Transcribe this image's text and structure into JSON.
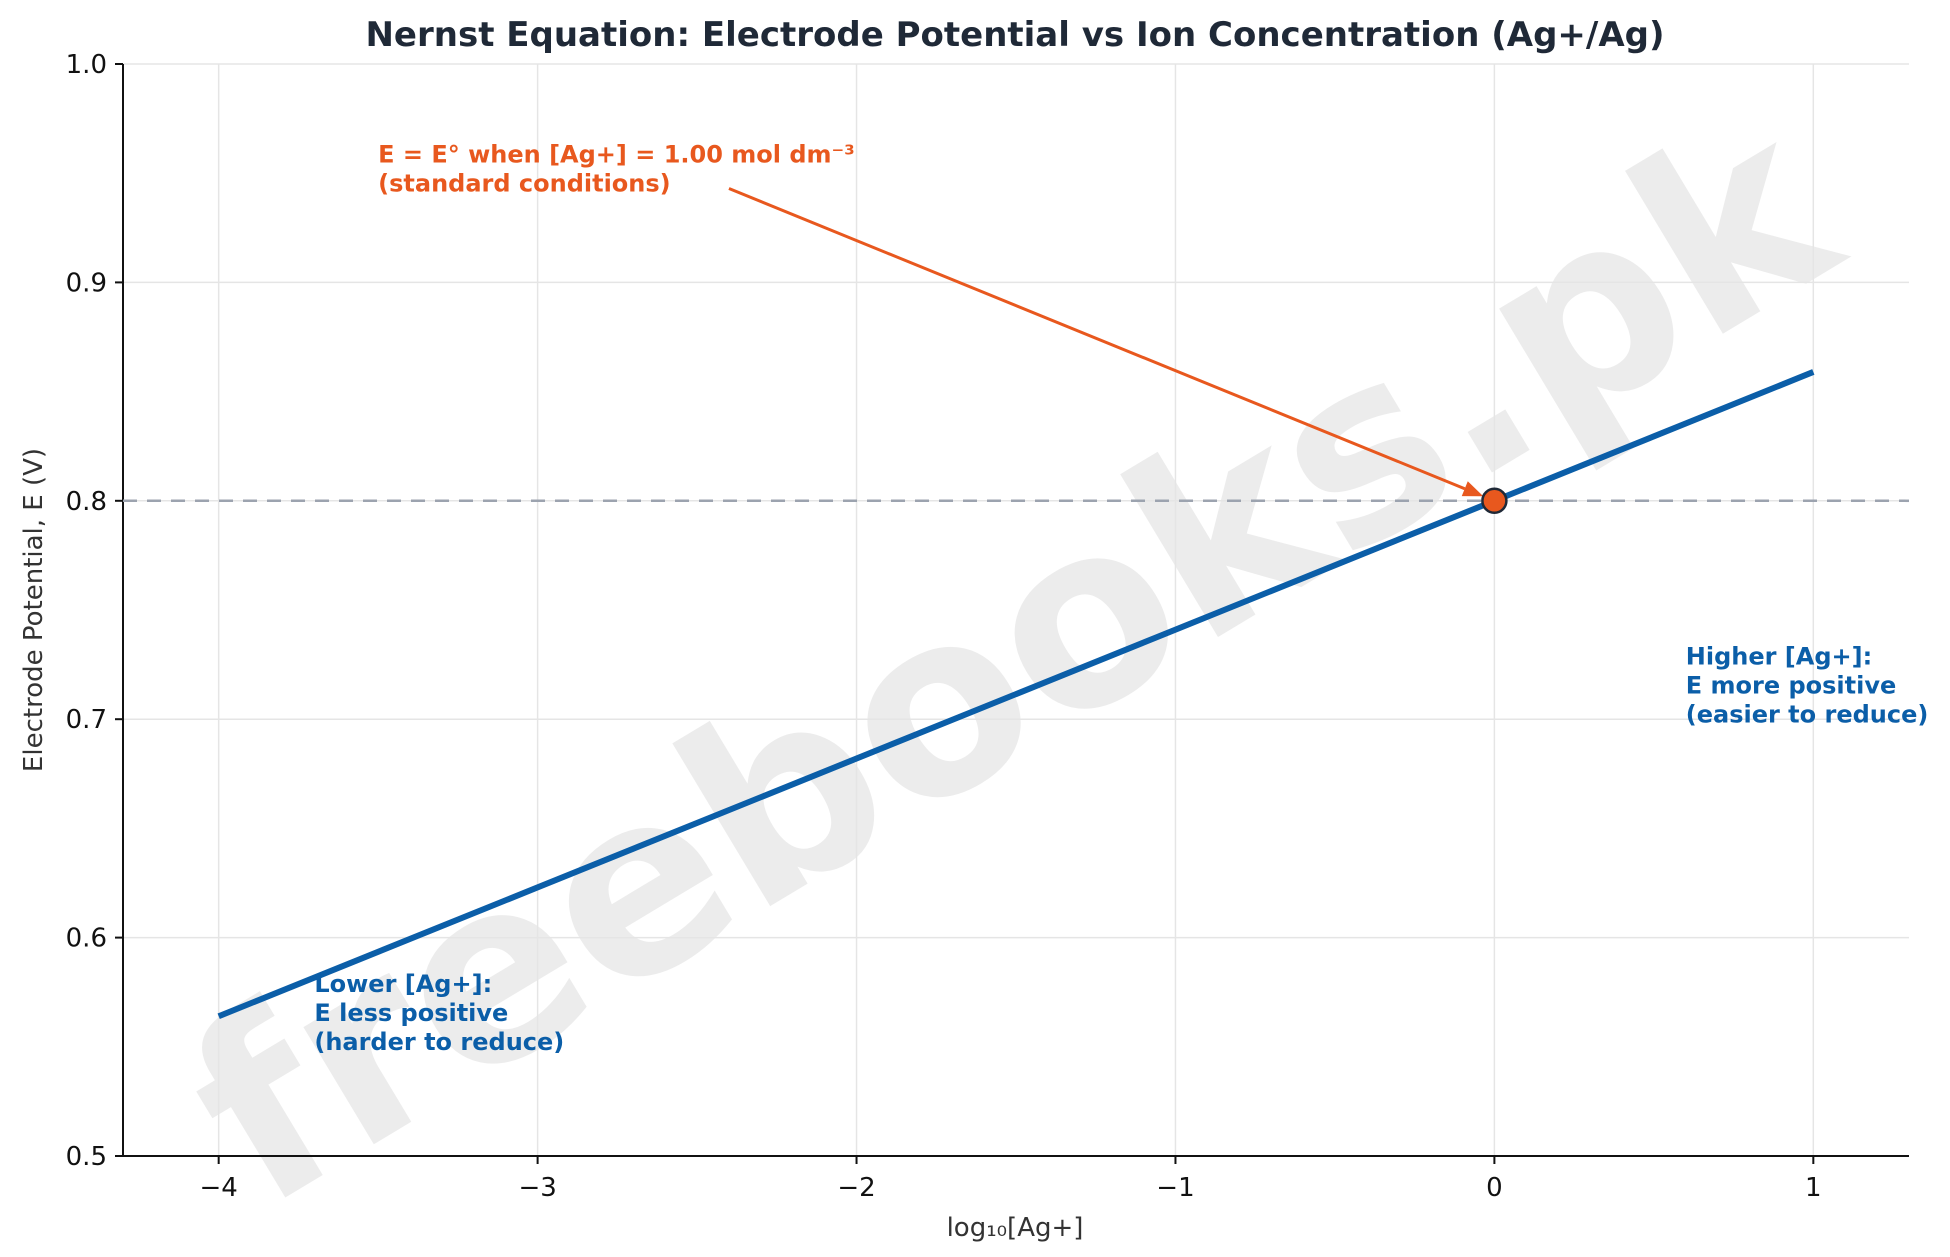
{
  "chart_data": {
    "type": "line",
    "title": "Nernst Equation: Electrode Potential vs Ion Concentration (Ag+/Ag)",
    "xlabel": "log₁₀[Ag+]",
    "ylabel": "Electrode Potential, E (V)",
    "xlim": [
      -4.3,
      1.3
    ],
    "ylim": [
      0.5,
      1.0
    ],
    "x_ticks": [
      {
        "value": -4,
        "label": "−4"
      },
      {
        "value": -3,
        "label": "−3"
      },
      {
        "value": -2,
        "label": "−2"
      },
      {
        "value": -1,
        "label": "−1"
      },
      {
        "value": 0,
        "label": "0"
      },
      {
        "value": 1,
        "label": "1"
      }
    ],
    "y_ticks": [
      {
        "value": 0.5,
        "label": "0.5"
      },
      {
        "value": 0.6,
        "label": "0.6"
      },
      {
        "value": 0.7,
        "label": "0.7"
      },
      {
        "value": 0.8,
        "label": "0.8"
      },
      {
        "value": 0.9,
        "label": "0.9"
      },
      {
        "value": 1.0,
        "label": "1.0"
      }
    ],
    "grid": true,
    "series": [
      {
        "x": [
          -4,
          1
        ],
        "y": [
          0.564,
          0.859
        ],
        "color": "#0b5ea8"
      }
    ],
    "reference_line": {
      "y": 0.8,
      "style": "dashed",
      "color": "#9ca3af"
    },
    "highlight_point": {
      "x": 0,
      "y": 0.8,
      "color": "#e8581e"
    },
    "annotations": [
      {
        "key": "standard",
        "lines": [
          "E = E° when [Ag+] = 1.00 mol dm⁻³",
          "(standard conditions)"
        ],
        "color": "#e8581e",
        "x": -3.5,
        "y": 0.955,
        "arrow_from": [
          -2.4,
          0.943
        ],
        "arrow_to": [
          0,
          0.8
        ]
      },
      {
        "key": "higher",
        "lines": [
          "Higher [Ag+]:",
          "E more positive",
          "(easier to reduce)"
        ],
        "color": "#0b5ea8",
        "x": 0.6,
        "y": 0.725
      },
      {
        "key": "lower",
        "lines": [
          "Lower [Ag+]:",
          "E less positive",
          "(harder to reduce)"
        ],
        "color": "#0b5ea8",
        "x": -3.7,
        "y": 0.575
      }
    ],
    "watermark": "freebooks.pk"
  }
}
